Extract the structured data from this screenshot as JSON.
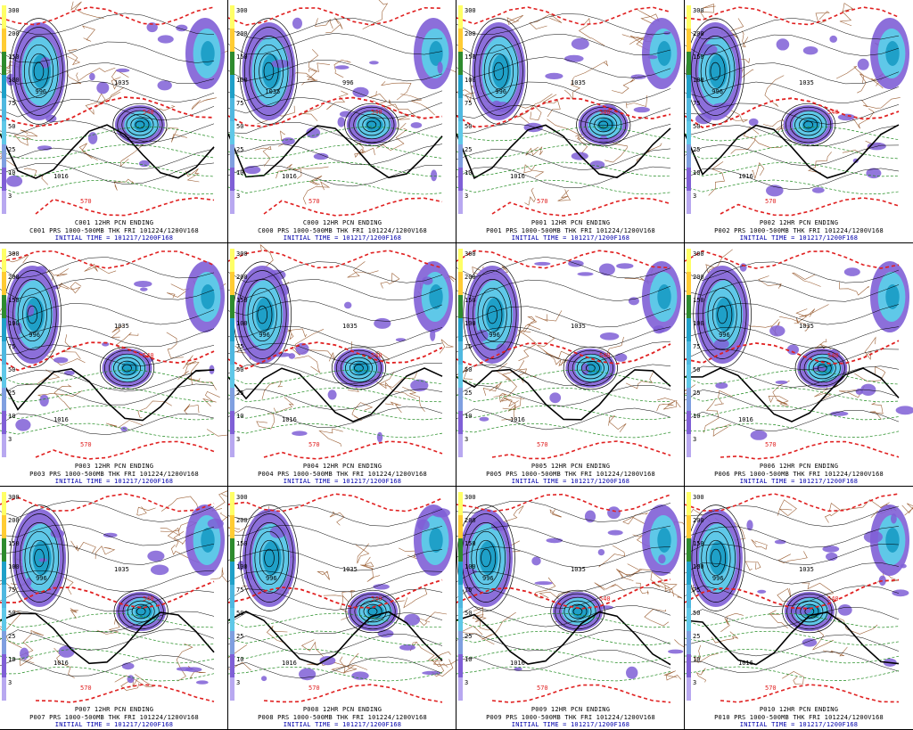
{
  "panels": [
    {
      "member": "C001",
      "line1": "C001 12HR PCN ENDING",
      "line2": "C001 PRS 1000-500MB THK FRI 101224/1200V168",
      "line3": "INITIAL TIME = 101217/1200F168",
      "highs": [
        "996",
        "1035",
        "1016"
      ]
    },
    {
      "member": "C000",
      "line1": "C000 12HR PCN ENDING",
      "line2": "C000 PRS 1000-500MB THK FRI 101224/1200V168",
      "line3": "INITIAL TIME = 101217/1200F168",
      "highs": [
        "1035",
        "996",
        "1016"
      ]
    },
    {
      "member": "P001",
      "line1": "P001 12HR PCN ENDING",
      "line2": "P001 PRS 1000-500MB THK FRI 101224/1200V168",
      "line3": "INITIAL TIME = 101217/1200F168",
      "highs": [
        "996",
        "1035",
        "1016"
      ]
    },
    {
      "member": "P002",
      "line1": "P002 12HR PCN ENDING",
      "line2": "P002 PRS 1000-500MB THK FRI 101224/1200V168",
      "line3": "INITIAL TIME = 101217/1200F168",
      "highs": [
        "996",
        "1035",
        "1016"
      ]
    },
    {
      "member": "P003",
      "line1": "P003 12HR PCN ENDING",
      "line2": "P003 PRS 1000-500MB THK FRI 101224/1200V168",
      "line3": "INITIAL TIME = 101217/1200F168",
      "highs": [
        "996",
        "1035",
        "1016"
      ]
    },
    {
      "member": "P004",
      "line1": "P004 12HR PCN ENDING",
      "line2": "P004 PRS 1000-500MB THK FRI 101224/1200V168",
      "line3": "INITIAL TIME = 101217/1200F168",
      "highs": [
        "996",
        "1035",
        "1016"
      ]
    },
    {
      "member": "P005",
      "line1": "P005 12HR PCN ENDING",
      "line2": "P005 PRS 1000-500MB THK FRI 101224/1200V168",
      "line3": "INITIAL TIME = 101217/1200F168",
      "highs": [
        "996",
        "1035",
        "1016"
      ]
    },
    {
      "member": "P006",
      "line1": "P006 12HR PCN ENDING",
      "line2": "P006 PRS 1000-500MB THK FRI 101224/1200V168",
      "line3": "INITIAL TIME = 101217/1200F168",
      "highs": [
        "996",
        "1035",
        "1016"
      ]
    },
    {
      "member": "P007",
      "line1": "P007 12HR PCN ENDING",
      "line2": "P007 PRS 1000-500MB THK FRI 101224/1200V168",
      "line3": "INITIAL TIME = 101217/1200F168",
      "highs": [
        "996",
        "1035",
        "1016"
      ]
    },
    {
      "member": "P008",
      "line1": "P008 12HR PCN ENDING",
      "line2": "P008 PRS 1000-500MB THK FRI 101224/1200V168",
      "line3": "INITIAL TIME = 101217/1200F168",
      "highs": [
        "996",
        "1035",
        "1016"
      ]
    },
    {
      "member": "P009",
      "line1": "P009 12HR PCN ENDING",
      "line2": "P009 PRS 1000-500MB THK FRI 101224/1200V168",
      "line3": "INITIAL TIME = 101217/1200F168",
      "highs": [
        "996",
        "1035",
        "1016"
      ]
    },
    {
      "member": "P010",
      "line1": "P010 12HR PCN ENDING",
      "line2": "P010 PRS 1000-500MB THK FRI 101224/1200V168",
      "line3": "INITIAL TIME = 101217/1200F168",
      "highs": [
        "996",
        "1035",
        "1016"
      ]
    }
  ],
  "precip_scale": [
    "300",
    "200",
    "150",
    "100",
    "75",
    "50",
    "25",
    "10",
    "3"
  ],
  "thickness_labels": [
    "570",
    "540"
  ],
  "colors": {
    "precip_light": "#7f5fd6",
    "precip_mid": "#5fc8e8",
    "precip_heavy": "#1fa0c8",
    "precip_max": "#2e8b2e",
    "thickness_warm": "#e02020",
    "thickness_cold": "#1e8a1e",
    "isobar": "#000000",
    "geo": "#8b4513",
    "caption_init": "#0000aa"
  }
}
